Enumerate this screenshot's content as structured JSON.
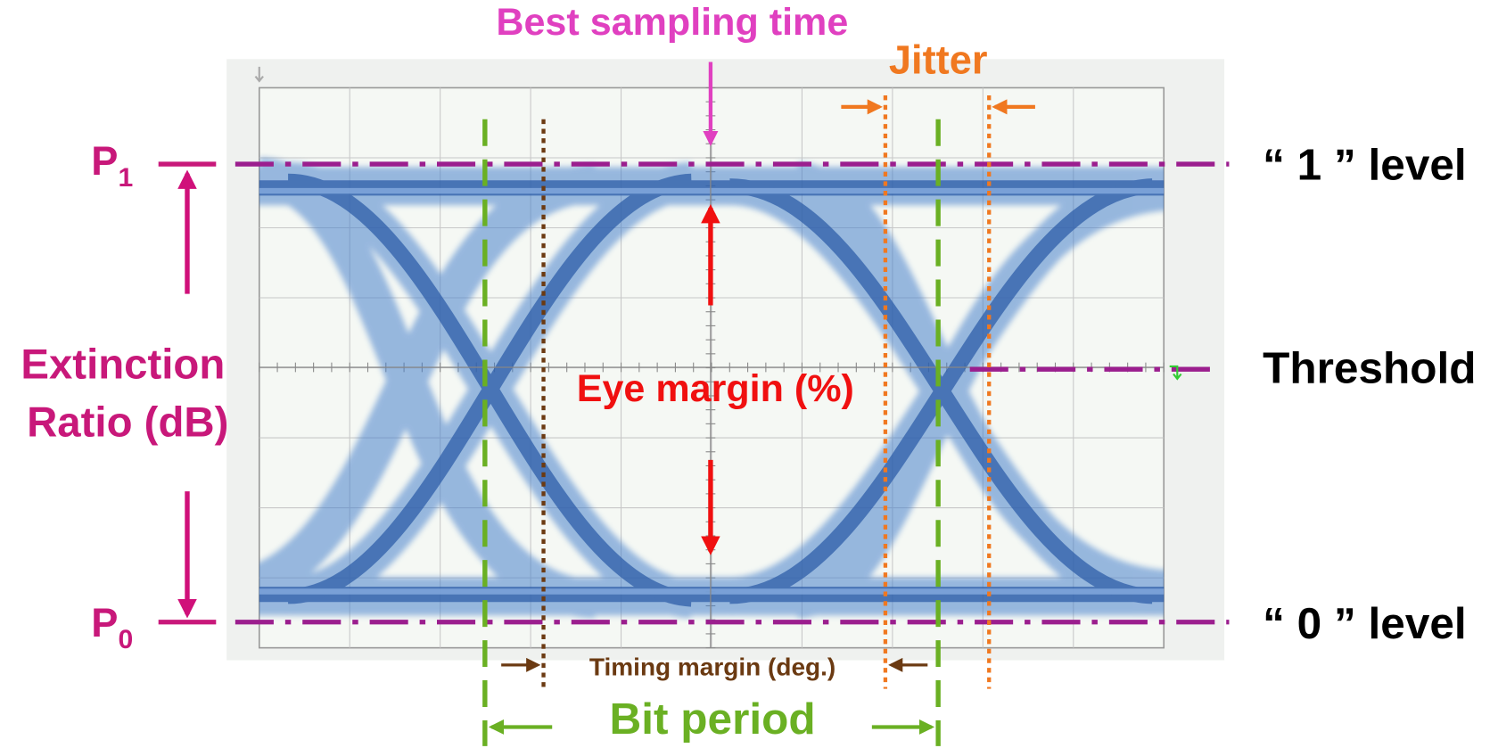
{
  "annotations": {
    "best_sampling_time": "Best sampling time",
    "jitter": "Jitter",
    "eye_margin": "Eye margin (%)",
    "timing_margin": "Timing margin (deg.)",
    "bit_period": "Bit period"
  },
  "levels": {
    "one": "“ 1 ” level",
    "threshold": "Threshold",
    "zero": "“ 0 ” level"
  },
  "power": {
    "p1": {
      "symbol": "P",
      "subscript": "1"
    },
    "p0": {
      "symbol": "P",
      "subscript": "0"
    }
  },
  "extinction_ratio": {
    "lines": [
      "Extinction",
      "Ratio (dB)"
    ]
  }
}
